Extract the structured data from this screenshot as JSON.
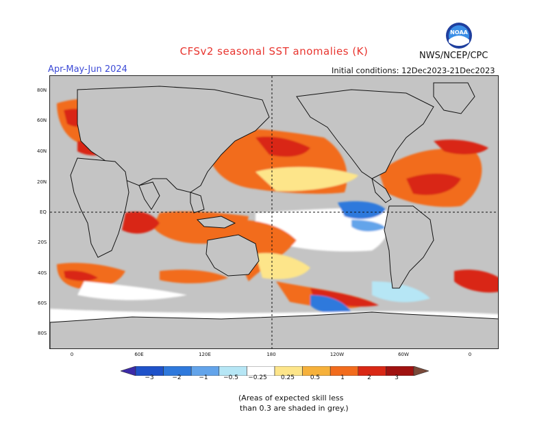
{
  "header": {
    "title": "CFSv2 seasonal SST anomalies (K)",
    "agency": "NWS/NCEP/CPC",
    "season": "Apr-May-Jun 2024",
    "initial_conditions": "Initial conditions: 12Dec2023-21Dec2023",
    "logo_text": "NOAA"
  },
  "map": {
    "lat_labels": [
      "80N",
      "60N",
      "40N",
      "20N",
      "EQ",
      "20S",
      "40S",
      "60S",
      "80S"
    ],
    "lon_labels": [
      "0",
      "60E",
      "120E",
      "180",
      "120W",
      "60W",
      "0"
    ],
    "background_color": "#c4c4c4"
  },
  "colorbar": {
    "ticks": [
      "−3",
      "−2",
      "−1",
      "−0.5",
      "−0.25",
      "0.25",
      "0.5",
      "1",
      "2",
      "3"
    ],
    "colors": [
      "#3c2aa8",
      "#1f52c9",
      "#2f79dc",
      "#63a4ea",
      "#b6e6f5",
      "#ffffff",
      "#fde58a",
      "#f6b13b",
      "#f26c1d",
      "#d92815",
      "#a01210",
      "#7a4a3a"
    ]
  },
  "note": {
    "line1": "(Areas of expected skill less",
    "line2": "than 0.3 are shaded in grey.)"
  }
}
